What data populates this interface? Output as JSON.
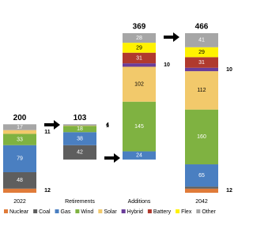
{
  "chart_data": {
    "type": "waterfall",
    "categories": [
      "2022",
      "Retirements",
      "Additions",
      "2042"
    ],
    "totals": [
      200,
      103,
      369,
      466
    ],
    "series": [
      {
        "name": "Nuclear",
        "color": "#e07b39",
        "values": [
          12,
          null,
          null,
          12
        ]
      },
      {
        "name": "Coal",
        "color": "#5e5e5e",
        "values": [
          48,
          42,
          null,
          6
        ],
        "value_labels": [
          "48",
          "42",
          null,
          null
        ]
      },
      {
        "name": "Gas",
        "color": "#4a7fc1",
        "values": [
          79,
          38,
          24,
          65
        ]
      },
      {
        "name": "Wind",
        "color": "#7fb241",
        "values": [
          33,
          18,
          145,
          160
        ]
      },
      {
        "name": "Solar",
        "color": "#f2c96b",
        "values": [
          11,
          1,
          102,
          112
        ]
      },
      {
        "name": "Hybrid",
        "color": "#6a3d9a",
        "values": [
          null,
          null,
          10,
          10
        ]
      },
      {
        "name": "Battery",
        "color": "#b03a2e",
        "values": [
          null,
          null,
          31,
          31
        ]
      },
      {
        "name": "Flex",
        "color": "#fff200",
        "values": [
          null,
          null,
          29,
          29
        ]
      },
      {
        "name": "Other",
        "color": "#a6a6a6",
        "values": [
          17,
          4,
          28,
          41
        ]
      }
    ]
  }
}
